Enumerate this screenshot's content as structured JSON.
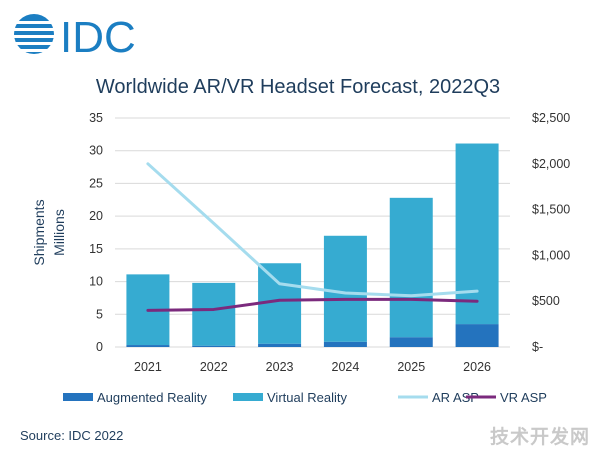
{
  "brand": {
    "logo_text": "IDC",
    "colors": {
      "logo": "#1b7ec2"
    }
  },
  "footer": {
    "source": "Source: IDC 2022",
    "watermark": "技术开发网"
  },
  "colors": {
    "ar": "#2473be",
    "vr": "#36abd1",
    "ar_asp": "#a5dcee",
    "vr_asp": "#7b2a7d"
  },
  "chart_data": {
    "type": "bar",
    "title": "Worldwide AR/VR Headset Forecast, 2022Q3",
    "ylabel_left": [
      "Shipments",
      "Millions"
    ],
    "categories": [
      "2021",
      "2022",
      "2023",
      "2024",
      "2025",
      "2026"
    ],
    "stacked": true,
    "ylim_left": [
      0,
      35
    ],
    "yticks_left": [
      0,
      5,
      10,
      15,
      20,
      25,
      30,
      35
    ],
    "ylim_right": [
      0,
      2500
    ],
    "yticks_right": [
      0,
      500,
      1000,
      1500,
      2000,
      2500
    ],
    "yticklabels_right": [
      "$-",
      "$500",
      "$1,000",
      "$1,500",
      "$2,000",
      "$2,500"
    ],
    "grid": true,
    "legend_position": "bottom",
    "series": [
      {
        "name": "Augmented Reality",
        "kind": "bar",
        "axis": "left",
        "values": [
          0.3,
          0.2,
          0.5,
          0.8,
          1.5,
          3.5
        ]
      },
      {
        "name": "Virtual Reality",
        "kind": "bar",
        "axis": "left",
        "values": [
          10.8,
          9.6,
          12.3,
          16.2,
          21.3,
          27.6
        ]
      },
      {
        "name": "AR ASP",
        "kind": "line",
        "axis": "right",
        "values": [
          2000,
          1350,
          690,
          590,
          560,
          610
        ]
      },
      {
        "name": "VR ASP",
        "kind": "line",
        "axis": "right",
        "values": [
          400,
          410,
          510,
          520,
          520,
          500
        ]
      }
    ]
  }
}
